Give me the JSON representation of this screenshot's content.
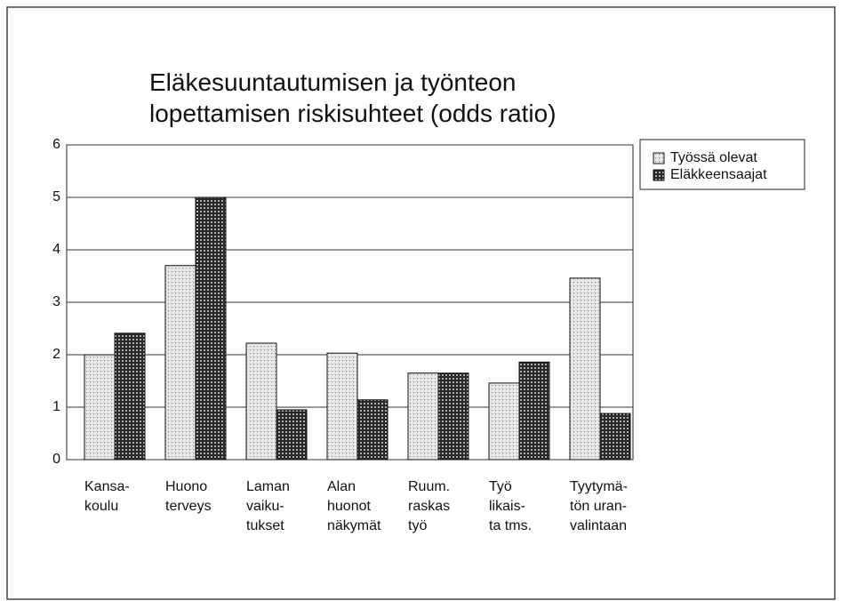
{
  "chart_data": {
    "type": "bar",
    "title": "Eläkesuuntautumisen ja työnteon\nlopettamisen riskisuhteet (odds ratio)",
    "categories": [
      "Kansa-\nkoulu",
      "Huono\nterveys",
      "Laman\nvaiku-\ntukset",
      "Alan\nhuonot\nnäkymät",
      "Ruum.\nraskas\ntyö",
      "Työ\nlikais-\nta tms.",
      "Tyytymä-\ntön uran-\nvalintaan"
    ],
    "series": [
      {
        "name": "Työssä olevat",
        "color": "#e6e6e6",
        "values": [
          2.0,
          3.7,
          2.22,
          2.03,
          1.65,
          1.46,
          3.46
        ]
      },
      {
        "name": "Eläkkeensaajat",
        "color": "#2a2a2a",
        "values": [
          2.41,
          5.0,
          0.95,
          1.14,
          1.65,
          1.86,
          0.88
        ]
      }
    ],
    "ylim": [
      0,
      6
    ],
    "yticks": [
      0,
      1,
      2,
      3,
      4,
      5,
      6
    ],
    "grid": true,
    "legend": "right"
  }
}
